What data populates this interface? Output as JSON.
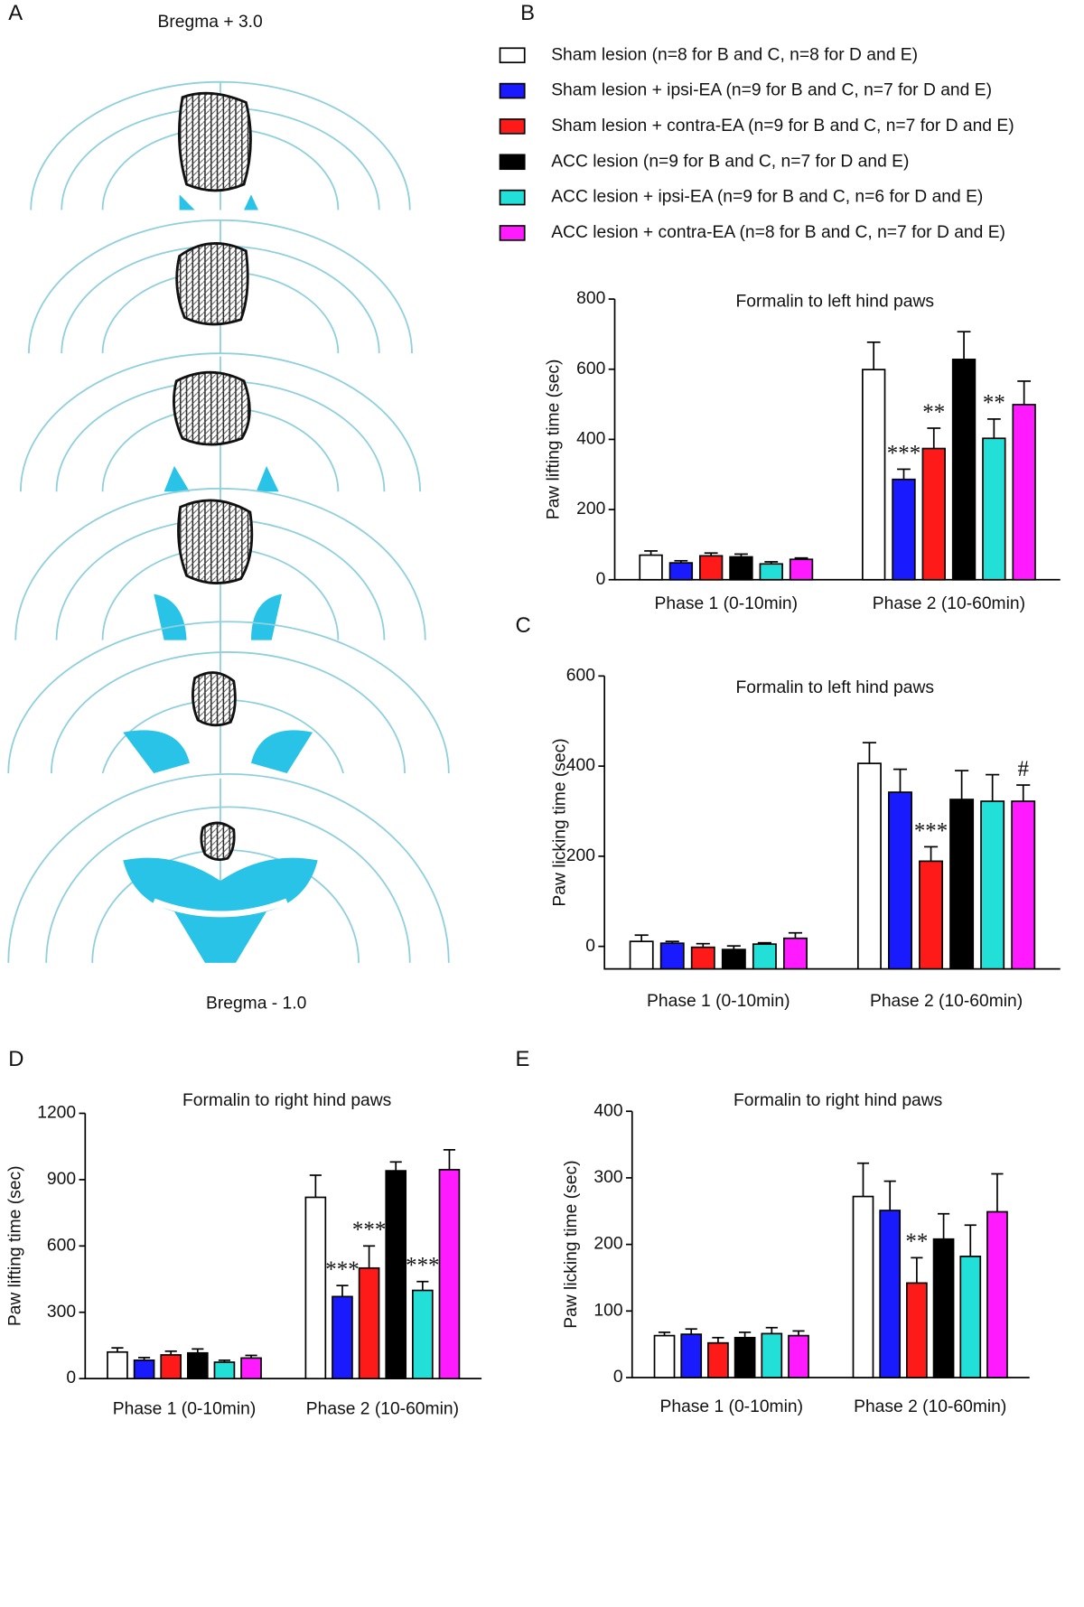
{
  "figure": {
    "panels": [
      "A",
      "B",
      "C",
      "D",
      "E"
    ],
    "atlas": [
      "Bregma + 3.0",
      "Bregma - 1.0"
    ]
  },
  "legend": [
    {
      "name": "Sham lesion (n=8 for B and C, n=8 for D and E)",
      "color": "#ffffff"
    },
    {
      "name": "Sham lesion + ipsi-EA (n=9 for B and C, n=7 for D and E)",
      "color": "#1a1aff"
    },
    {
      "name": "Sham lesion + contra-EA (n=9 for B and C, n=7 for D and E)",
      "color": "#ff1a1a"
    },
    {
      "name": "ACC lesion (n=9 for B and C, n=7 for D and E)",
      "color": "#000000"
    },
    {
      "name": "ACC lesion + ipsi-EA (n=9 for B and C, n=6 for D and E)",
      "color": "#22e0d8"
    },
    {
      "name": "ACC lesion + contra-EA (n=8 for B and C, n=7 for D and E)",
      "color": "#ff1aff"
    }
  ],
  "chart_data": [
    {
      "type": "bar",
      "title": "Formalin to left hind paws",
      "y_label": "Paw lifting time (sec)",
      "categories": [
        "Phase 1 (0-10min)",
        "Phase 2 (10-60min)"
      ],
      "series": [
        {
          "values": [
            70,
            599
          ],
          "errors": [
            12,
            78
          ],
          "marks": [
            null,
            null
          ]
        },
        {
          "values": [
            48,
            286
          ],
          "errors": [
            6,
            29
          ],
          "marks": [
            null,
            "***"
          ]
        },
        {
          "values": [
            68,
            374
          ],
          "errors": [
            8,
            58
          ],
          "marks": [
            null,
            "**"
          ]
        },
        {
          "values": [
            65,
            628
          ],
          "errors": [
            8,
            79
          ],
          "marks": [
            null,
            null
          ]
        },
        {
          "values": [
            45,
            403
          ],
          "errors": [
            6,
            55
          ],
          "marks": [
            null,
            "**"
          ]
        },
        {
          "values": [
            58,
            499
          ],
          "errors": [
            4,
            67
          ],
          "marks": [
            null,
            null
          ]
        }
      ],
      "ylim": [
        0,
        800
      ],
      "yticks": [
        0,
        200,
        400,
        600,
        800
      ]
    },
    {
      "type": "bar",
      "title": "Formalin to left hind paws",
      "y_label": "Paw licking time (sec)",
      "categories": [
        "Phase 1 (0-10min)",
        "Phase 2 (10-60min)"
      ],
      "series": [
        {
          "values": [
            11,
            406
          ],
          "errors": [
            14,
            46
          ],
          "marks": [
            null,
            null
          ]
        },
        {
          "values": [
            7,
            342
          ],
          "errors": [
            4,
            51
          ],
          "marks": [
            null,
            null
          ]
        },
        {
          "values": [
            -2,
            189
          ],
          "errors": [
            8,
            32
          ],
          "marks": [
            null,
            "***"
          ]
        },
        {
          "values": [
            -7,
            326
          ],
          "errors": [
            8,
            64
          ],
          "marks": [
            null,
            null
          ]
        },
        {
          "values": [
            5,
            322
          ],
          "errors": [
            3,
            59
          ],
          "marks": [
            null,
            null
          ]
        },
        {
          "values": [
            18,
            322
          ],
          "errors": [
            12,
            36
          ],
          "marks": [
            null,
            "#"
          ]
        }
      ],
      "ylim": [
        -50,
        600
      ],
      "yticks": [
        0,
        200,
        400,
        600
      ]
    },
    {
      "type": "bar",
      "title": "Formalin to right hind paws",
      "y_label": "Paw lifting time (sec)",
      "categories": [
        "Phase 1 (0-10min)",
        "Phase 2 (10-60min)"
      ],
      "series": [
        {
          "values": [
            120,
            820
          ],
          "errors": [
            19,
            100
          ],
          "marks": [
            null,
            null
          ]
        },
        {
          "values": [
            83,
            371
          ],
          "errors": [
            12,
            50
          ],
          "marks": [
            null,
            "***"
          ]
        },
        {
          "values": [
            107,
            500
          ],
          "errors": [
            17,
            100
          ],
          "marks": [
            null,
            "***"
          ]
        },
        {
          "values": [
            116,
            940
          ],
          "errors": [
            18,
            40
          ],
          "marks": [
            null,
            null
          ]
        },
        {
          "values": [
            74,
            399
          ],
          "errors": [
            9,
            40
          ],
          "marks": [
            null,
            "***"
          ]
        },
        {
          "values": [
            93,
            945
          ],
          "errors": [
            12,
            90
          ],
          "marks": [
            null,
            null
          ]
        }
      ],
      "ylim": [
        0,
        1200
      ],
      "yticks": [
        0,
        300,
        600,
        900,
        1200
      ]
    },
    {
      "type": "bar",
      "title": "Formalin to right hind paws",
      "y_label": "Paw licking time (sec)",
      "categories": [
        "Phase 1 (0-10min)",
        "Phase 2 (10-60min)"
      ],
      "series": [
        {
          "values": [
            63,
            272
          ],
          "errors": [
            5,
            50
          ],
          "marks": [
            null,
            null
          ]
        },
        {
          "values": [
            65,
            251
          ],
          "errors": [
            8,
            44
          ],
          "marks": [
            null,
            null
          ]
        },
        {
          "values": [
            52,
            142
          ],
          "errors": [
            8,
            38
          ],
          "marks": [
            null,
            "**"
          ]
        },
        {
          "values": [
            60,
            208
          ],
          "errors": [
            8,
            38
          ],
          "marks": [
            null,
            null
          ]
        },
        {
          "values": [
            66,
            182
          ],
          "errors": [
            9,
            47
          ],
          "marks": [
            null,
            null
          ]
        },
        {
          "values": [
            63,
            249
          ],
          "errors": [
            7,
            57
          ],
          "marks": [
            null,
            null
          ]
        }
      ],
      "ylim": [
        0,
        400
      ],
      "yticks": [
        0,
        100,
        200,
        300,
        400
      ]
    }
  ]
}
